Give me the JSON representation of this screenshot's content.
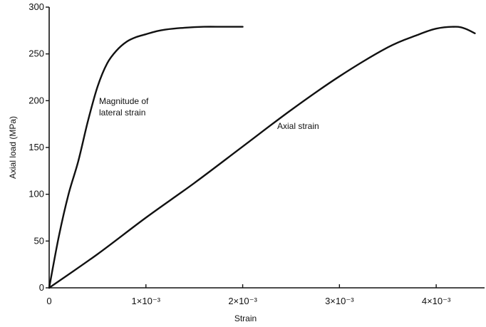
{
  "chart_data": {
    "type": "line",
    "title": "",
    "xlabel": "Strain",
    "ylabel": "Axial load (MPa)",
    "xlim": [
      0,
      0.0045
    ],
    "ylim": [
      0,
      300
    ],
    "grid": false,
    "x_ticks": [
      {
        "value": 0,
        "label": "0"
      },
      {
        "value": 0.001,
        "label": "1×10⁻³"
      },
      {
        "value": 0.002,
        "label": "2×10⁻³"
      },
      {
        "value": 0.003,
        "label": "3×10⁻³"
      },
      {
        "value": 0.004,
        "label": "4×10⁻³"
      }
    ],
    "y_ticks": [
      {
        "value": 0,
        "label": "0"
      },
      {
        "value": 50,
        "label": "50"
      },
      {
        "value": 100,
        "label": "100"
      },
      {
        "value": 150,
        "label": "150"
      },
      {
        "value": 200,
        "label": "200"
      },
      {
        "value": 250,
        "label": "250"
      },
      {
        "value": 300,
        "label": "300"
      }
    ],
    "series": [
      {
        "key": "lateral",
        "x": [
          0,
          0.0001,
          0.0002,
          0.0003,
          0.0004,
          0.0005,
          0.0006,
          0.0007,
          0.0008,
          0.0009,
          0.001,
          0.0011,
          0.0012,
          0.0014,
          0.0016,
          0.0018,
          0.002
        ],
        "y": [
          0,
          55,
          100,
          135,
          178,
          215,
          240,
          254,
          263,
          268,
          271,
          274,
          276,
          278,
          279,
          279,
          279
        ]
      },
      {
        "key": "axial",
        "x": [
          0,
          0.0005,
          0.001,
          0.0015,
          0.002,
          0.0025,
          0.003,
          0.0035,
          0.0038,
          0.004,
          0.0042,
          0.0043,
          0.0044
        ],
        "y": [
          0,
          36,
          75,
          112,
          151,
          190,
          226,
          257,
          270,
          277,
          279,
          277,
          272
        ]
      }
    ],
    "annotations": [
      {
        "target": "lateral",
        "lines": [
          "Magnitude of",
          "lateral strain"
        ]
      },
      {
        "target": "axial",
        "lines": [
          "Axial strain"
        ]
      }
    ]
  }
}
